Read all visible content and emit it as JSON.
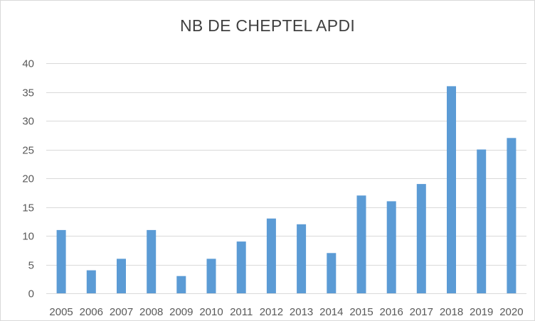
{
  "chart_data": {
    "type": "bar",
    "title": "NB DE CHEPTEL APDI",
    "xlabel": "",
    "ylabel": "",
    "categories": [
      "2005",
      "2006",
      "2007",
      "2008",
      "2009",
      "2010",
      "2011",
      "2012",
      "2013",
      "2014",
      "2015",
      "2016",
      "2017",
      "2018",
      "2019",
      "2020"
    ],
    "values": [
      11,
      4,
      6,
      11,
      3,
      6,
      9,
      13,
      12,
      7,
      17,
      16,
      19,
      36,
      25,
      27
    ],
    "ylim": [
      0,
      40
    ],
    "yticks": [
      0,
      5,
      10,
      15,
      20,
      25,
      30,
      35,
      40
    ],
    "grid": true,
    "legend": "none",
    "colors": {
      "bar": "#5b9bd5",
      "grid": "#d9d9d9",
      "text": "#595959",
      "title": "#404040"
    }
  }
}
